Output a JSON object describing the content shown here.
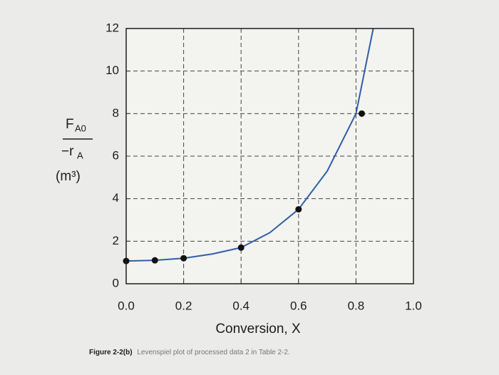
{
  "chart_data": {
    "type": "line",
    "x_label": "Conversion, X",
    "y_label": {
      "numerator": "F",
      "numerator_sub": "A0",
      "denominator": "−r",
      "denominator_sub": "A",
      "unit": "(m³)"
    },
    "caption": {
      "label": "Figure 2-2(b)",
      "text": "Levenspiel plot of processed data 2 in Table 2-2."
    },
    "xlim": [
      0,
      1.0
    ],
    "ylim": [
      0,
      12
    ],
    "xticks": [
      {
        "value": 0,
        "label": "0.0"
      },
      0.2,
      0.4,
      0.6,
      0.8,
      {
        "value": 1,
        "label": "1.0"
      }
    ],
    "yticks": [
      0,
      2,
      4,
      6,
      8,
      10,
      12
    ],
    "grid": true,
    "series": [
      {
        "x": [
          0,
          0.1,
          0.2,
          0.3,
          0.4,
          0.5,
          0.6,
          0.7,
          0.8,
          0.86
        ],
        "values": [
          1.07,
          1.1,
          1.2,
          1.4,
          1.7,
          2.4,
          3.5,
          5.3,
          8.0,
          12
        ],
        "color": "#2f5fa8",
        "markers": false
      },
      {
        "x": [
          0,
          0.1,
          0.2,
          0.4,
          0.6,
          0.82
        ],
        "values": [
          1.07,
          1.1,
          1.2,
          1.7,
          3.5,
          8.0
        ],
        "color": "#111111",
        "markers": true,
        "line": false
      }
    ]
  }
}
